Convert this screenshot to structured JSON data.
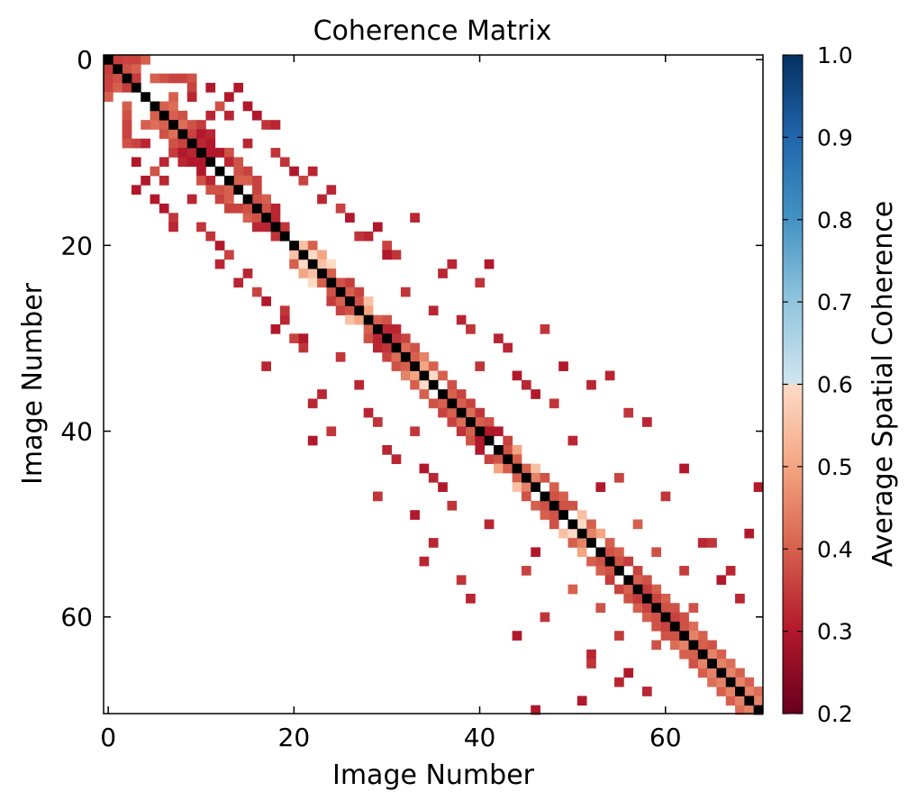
{
  "chart_data": {
    "type": "heatmap",
    "title": "Coherence Matrix",
    "xlabel": "Image Number",
    "ylabel": "Image Number",
    "n": 71,
    "xticks": [
      0,
      20,
      40,
      60
    ],
    "yticks": [
      0,
      20,
      40,
      60
    ],
    "grid": false,
    "colorbar": {
      "label": "Average Spatial Coherence",
      "range": [
        0.2,
        1.0
      ],
      "ticks": [
        "0.2",
        "0.3",
        "0.4",
        "0.5",
        "0.6",
        "0.7",
        "0.8",
        "0.9",
        "1.0"
      ],
      "colormap": "RdBu"
    },
    "diagonal_value": 1.0,
    "diagonal_color": "#000000",
    "note_values": "lower-half pairs listed as [row, col, value]; matrix is symmetric",
    "cells": [
      [
        1,
        0,
        0.35
      ],
      [
        2,
        0,
        0.36
      ],
      [
        3,
        0,
        0.36
      ],
      [
        4,
        0,
        0.4
      ],
      [
        2,
        1,
        0.38
      ],
      [
        3,
        1,
        0.4
      ],
      [
        3,
        2,
        0.35
      ],
      [
        5,
        2,
        0.4
      ],
      [
        6,
        2,
        0.38
      ],
      [
        8,
        2,
        0.36
      ],
      [
        9,
        2,
        0.38
      ],
      [
        9,
        3,
        0.36
      ],
      [
        11,
        3,
        0.3
      ],
      [
        6,
        5,
        0.4
      ],
      [
        7,
        5,
        0.42
      ],
      [
        7,
        6,
        0.4
      ],
      [
        8,
        6,
        0.38
      ],
      [
        8,
        7,
        0.42
      ],
      [
        9,
        7,
        0.38
      ],
      [
        10,
        7,
        0.35
      ],
      [
        9,
        8,
        0.36
      ],
      [
        10,
        8,
        0.3
      ],
      [
        11,
        8,
        0.32
      ],
      [
        10,
        9,
        0.32
      ],
      [
        11,
        9,
        0.3
      ],
      [
        11,
        10,
        0.3
      ],
      [
        12,
        10,
        0.3
      ],
      [
        13,
        10,
        0.38
      ],
      [
        13,
        11,
        0.32
      ],
      [
        14,
        11,
        0.38
      ],
      [
        15,
        12,
        0.36
      ],
      [
        14,
        12,
        0.38
      ],
      [
        15,
        13,
        0.4
      ],
      [
        16,
        13,
        0.36
      ],
      [
        14,
        13,
        0.4
      ],
      [
        16,
        14,
        0.36
      ],
      [
        17,
        15,
        0.4
      ],
      [
        16,
        15,
        0.38
      ],
      [
        17,
        16,
        0.38
      ],
      [
        18,
        16,
        0.32
      ],
      [
        18,
        17,
        0.32
      ],
      [
        19,
        18,
        0.34
      ],
      [
        21,
        20,
        0.55
      ],
      [
        22,
        20,
        0.4
      ],
      [
        22,
        21,
        0.6
      ],
      [
        23,
        21,
        0.5
      ],
      [
        23,
        22,
        0.55
      ],
      [
        24,
        22,
        0.6
      ],
      [
        24,
        23,
        0.4
      ],
      [
        25,
        24,
        0.38
      ],
      [
        26,
        24,
        0.35
      ],
      [
        26,
        25,
        0.4
      ],
      [
        27,
        25,
        0.36
      ],
      [
        27,
        26,
        0.38
      ],
      [
        28,
        26,
        0.55
      ],
      [
        28,
        27,
        0.5
      ],
      [
        29,
        28,
        0.4
      ],
      [
        30,
        28,
        0.38
      ],
      [
        30,
        29,
        0.32
      ],
      [
        31,
        29,
        0.32
      ],
      [
        31,
        30,
        0.34
      ],
      [
        32,
        30,
        0.36
      ],
      [
        32,
        31,
        0.42
      ],
      [
        33,
        31,
        0.38
      ],
      [
        33,
        32,
        0.4
      ],
      [
        34,
        32,
        0.45
      ],
      [
        34,
        33,
        0.5
      ],
      [
        35,
        33,
        0.4
      ],
      [
        35,
        34,
        0.6
      ],
      [
        36,
        34,
        0.4
      ],
      [
        37,
        35,
        0.38
      ],
      [
        37,
        36,
        0.4
      ],
      [
        38,
        36,
        0.36
      ],
      [
        38,
        37,
        0.4
      ],
      [
        39,
        37,
        0.36
      ],
      [
        39,
        38,
        0.42
      ],
      [
        40,
        38,
        0.34
      ],
      [
        40,
        39,
        0.4
      ],
      [
        41,
        39,
        0.38
      ],
      [
        41,
        40,
        0.3
      ],
      [
        42,
        40,
        0.3
      ],
      [
        43,
        41,
        0.36
      ],
      [
        43,
        42,
        0.38
      ],
      [
        44,
        42,
        0.5
      ],
      [
        44,
        43,
        0.4
      ],
      [
        45,
        44,
        0.4
      ],
      [
        46,
        44,
        0.55
      ],
      [
        46,
        45,
        0.45
      ],
      [
        47,
        45,
        0.38
      ],
      [
        48,
        46,
        0.4
      ],
      [
        48,
        47,
        0.38
      ],
      [
        49,
        47,
        0.4
      ],
      [
        49,
        48,
        0.38
      ],
      [
        50,
        48,
        0.38
      ],
      [
        51,
        49,
        0.55
      ],
      [
        51,
        50,
        0.6
      ],
      [
        52,
        50,
        0.4
      ],
      [
        53,
        51,
        0.5
      ],
      [
        52,
        51,
        0.45
      ],
      [
        54,
        52,
        0.4
      ],
      [
        54,
        53,
        0.38
      ],
      [
        55,
        53,
        0.4
      ],
      [
        55,
        54,
        0.38
      ],
      [
        56,
        54,
        0.35
      ],
      [
        57,
        55,
        0.36
      ],
      [
        57,
        56,
        0.4
      ],
      [
        58,
        56,
        0.38
      ],
      [
        59,
        57,
        0.4
      ],
      [
        58,
        57,
        0.35
      ],
      [
        60,
        58,
        0.4
      ],
      [
        59,
        58,
        0.36
      ],
      [
        61,
        59,
        0.38
      ],
      [
        60,
        59,
        0.38
      ],
      [
        62,
        60,
        0.38
      ],
      [
        61,
        60,
        0.36
      ],
      [
        63,
        61,
        0.42
      ],
      [
        62,
        61,
        0.38
      ],
      [
        64,
        62,
        0.4
      ],
      [
        63,
        62,
        0.45
      ],
      [
        65,
        63,
        0.38
      ],
      [
        64,
        63,
        0.4
      ],
      [
        66,
        64,
        0.4
      ],
      [
        65,
        64,
        0.45
      ],
      [
        67,
        65,
        0.42
      ],
      [
        66,
        65,
        0.45
      ],
      [
        68,
        66,
        0.4
      ],
      [
        67,
        66,
        0.45
      ],
      [
        69,
        67,
        0.4
      ],
      [
        68,
        67,
        0.45
      ],
      [
        70,
        68,
        0.42
      ],
      [
        69,
        68,
        0.45
      ],
      [
        70,
        69,
        0.45
      ],
      [
        13,
        4,
        0.3
      ],
      [
        15,
        5,
        0.3
      ],
      [
        16,
        6,
        0.3
      ],
      [
        17,
        7,
        0.34
      ],
      [
        13,
        6,
        0.32
      ],
      [
        15,
        9,
        0.32
      ],
      [
        18,
        10,
        0.34
      ],
      [
        19,
        11,
        0.34
      ],
      [
        21,
        13,
        0.36
      ],
      [
        22,
        12,
        0.32
      ],
      [
        23,
        15,
        0.32
      ],
      [
        24,
        14,
        0.32
      ],
      [
        26,
        17,
        0.3
      ],
      [
        28,
        19,
        0.32
      ],
      [
        29,
        18,
        0.3
      ],
      [
        30,
        20,
        0.36
      ],
      [
        31,
        21,
        0.34
      ],
      [
        33,
        17,
        0.32
      ],
      [
        36,
        23,
        0.32
      ],
      [
        37,
        22,
        0.32
      ],
      [
        38,
        28,
        0.32
      ],
      [
        39,
        29,
        0.34
      ],
      [
        41,
        22,
        0.3
      ],
      [
        40,
        24,
        0.34
      ],
      [
        42,
        30,
        0.32
      ],
      [
        44,
        34,
        0.3
      ],
      [
        45,
        35,
        0.32
      ],
      [
        47,
        29,
        0.34
      ],
      [
        49,
        33,
        0.3
      ],
      [
        52,
        35,
        0.32
      ],
      [
        54,
        34,
        0.32
      ],
      [
        56,
        38,
        0.34
      ],
      [
        58,
        39,
        0.32
      ],
      [
        60,
        47,
        0.34
      ],
      [
        62,
        44,
        0.3
      ],
      [
        64,
        52,
        0.32
      ],
      [
        66,
        56,
        0.3
      ],
      [
        68,
        58,
        0.32
      ],
      [
        70,
        46,
        0.3
      ],
      [
        69,
        51,
        0.3
      ],
      [
        67,
        55,
        0.32
      ],
      [
        65,
        52,
        0.34
      ],
      [
        63,
        59,
        0.38
      ],
      [
        62,
        55,
        0.35
      ],
      [
        59,
        53,
        0.38
      ],
      [
        57,
        50,
        0.4
      ],
      [
        55,
        45,
        0.36
      ],
      [
        53,
        46,
        0.3
      ],
      [
        50,
        41,
        0.32
      ],
      [
        48,
        37,
        0.34
      ],
      [
        46,
        36,
        0.3
      ],
      [
        43,
        31,
        0.32
      ],
      [
        40,
        33,
        0.34
      ],
      [
        35,
        27,
        0.32
      ],
      [
        32,
        25,
        0.34
      ],
      [
        30,
        21,
        0.3
      ],
      [
        27,
        19,
        0.34
      ],
      [
        25,
        16,
        0.36
      ],
      [
        20,
        12,
        0.3
      ],
      [
        18,
        7,
        0.32
      ],
      [
        14,
        3,
        0.3
      ],
      [
        12,
        5,
        0.38
      ],
      [
        11,
        6,
        0.32
      ],
      [
        9,
        4,
        0.32
      ],
      [
        7,
        4,
        0.4
      ],
      [
        7,
        2,
        0.36
      ]
    ]
  }
}
